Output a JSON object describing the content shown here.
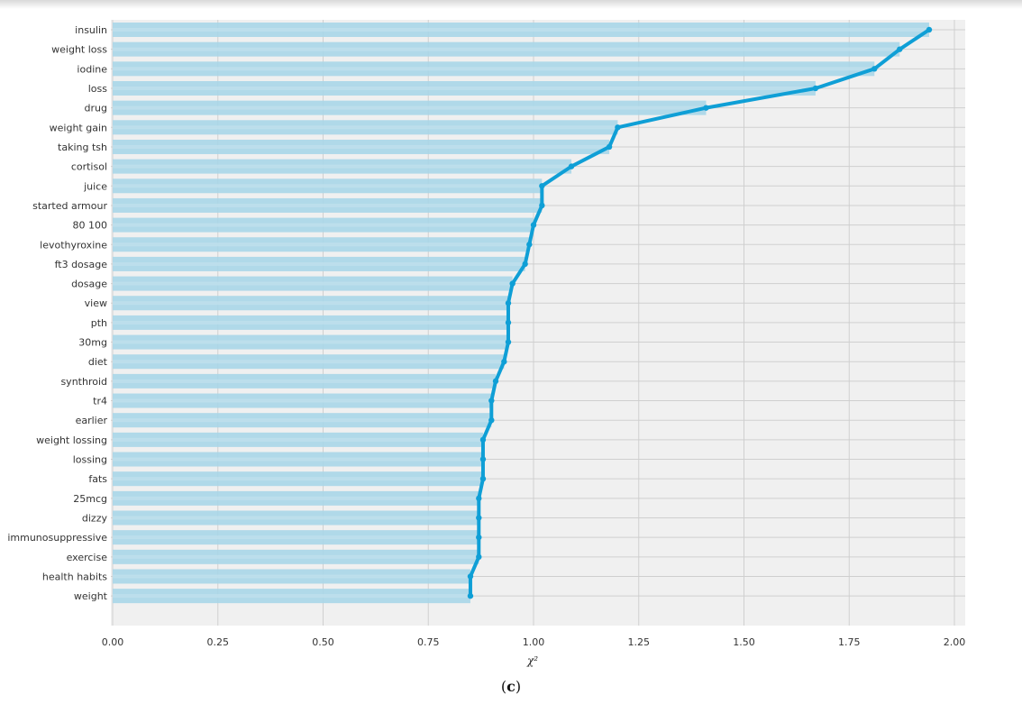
{
  "caption": {
    "open": "(",
    "letter": "c",
    "close": ")"
  },
  "chart_data": {
    "type": "bar",
    "orientation": "horizontal",
    "xlabel": "χ²",
    "ylabel": "",
    "xlim": [
      0,
      2.0
    ],
    "xticks": [
      "0.00",
      "0.25",
      "0.50",
      "0.75",
      "1.00",
      "1.25",
      "1.50",
      "1.75",
      "2.00"
    ],
    "grid": true,
    "colors": {
      "bar": "#a9d6e8",
      "bar_band": "#c6e3ef",
      "line": "#0f9fd6",
      "plot_bg": "#f0f0f0",
      "grid": "#cfcfcf"
    },
    "categories": [
      "insulin",
      "weight loss",
      "iodine",
      "loss",
      "drug",
      "weight gain",
      "taking tsh",
      "cortisol",
      "juice",
      "started armour",
      "80 100",
      "levothyroxine",
      "ft3 dosage",
      "dosage",
      "view",
      "pth",
      "30mg",
      "diet",
      "synthroid",
      "tr4",
      "earlier",
      "weight lossing",
      "lossing",
      "fats",
      "25mcg",
      "dizzy",
      "immunosuppressive",
      "exercise",
      "health habits",
      "weight"
    ],
    "values": [
      1.94,
      1.87,
      1.81,
      1.67,
      1.41,
      1.2,
      1.18,
      1.09,
      1.02,
      1.02,
      1.0,
      0.99,
      0.98,
      0.95,
      0.94,
      0.94,
      0.94,
      0.93,
      0.91,
      0.9,
      0.9,
      0.88,
      0.88,
      0.88,
      0.87,
      0.87,
      0.87,
      0.87,
      0.85,
      0.85
    ]
  }
}
